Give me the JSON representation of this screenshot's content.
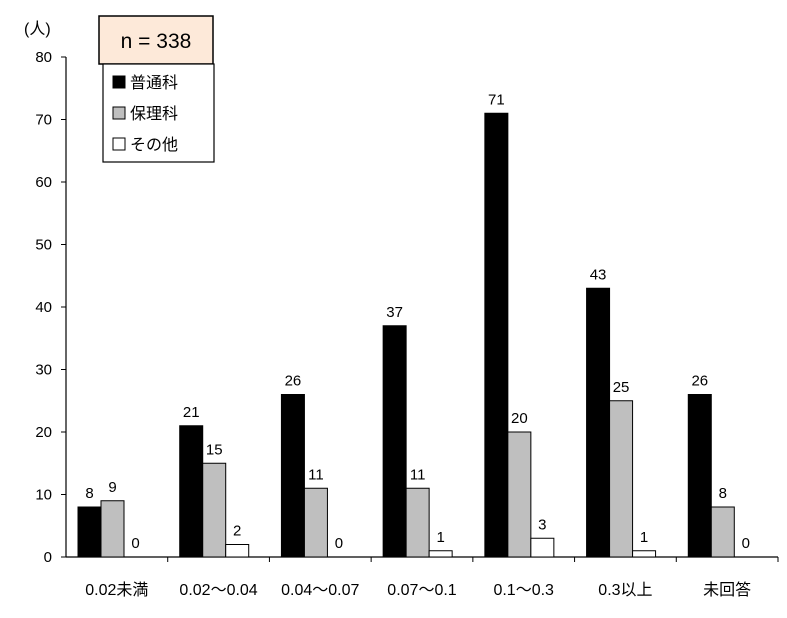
{
  "chart_data": {
    "type": "bar",
    "unit_label": "(人)",
    "n_label": "n = 338",
    "categories": [
      "0.02未満",
      "0.02〜0.04",
      "0.04〜0.07",
      "0.07〜0.1",
      "0.1〜0.3",
      "0.3以上",
      "未回答"
    ],
    "series": [
      {
        "name": "普通科",
        "values": [
          8,
          21,
          26,
          37,
          71,
          43,
          26
        ],
        "color": "#000000"
      },
      {
        "name": "保理科",
        "values": [
          9,
          15,
          11,
          11,
          20,
          25,
          8
        ],
        "color": "#bfbfbf"
      },
      {
        "name": "その他",
        "values": [
          0,
          2,
          0,
          1,
          3,
          1,
          0
        ],
        "color": "#ffffff"
      }
    ],
    "yticks": [
      0,
      10,
      20,
      30,
      40,
      50,
      60,
      70,
      80
    ],
    "ylim": [
      0,
      80
    ],
    "grid": false,
    "legend_position": "top-left"
  }
}
